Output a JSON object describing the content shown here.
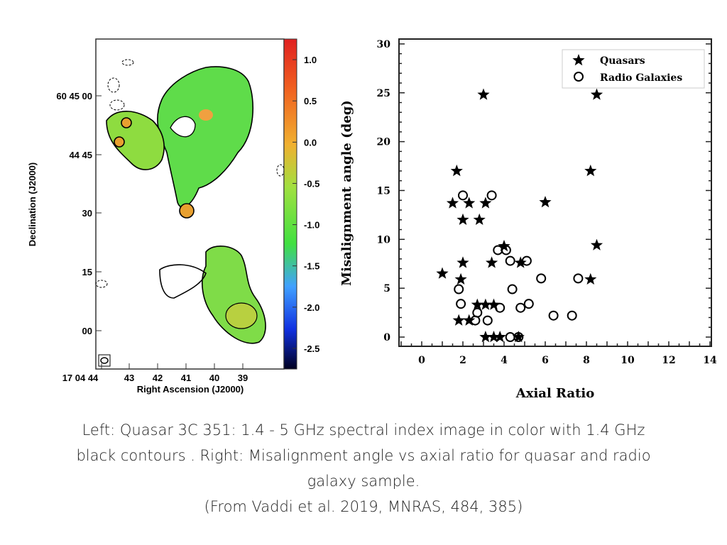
{
  "left_panel": {
    "title": "",
    "xlabel": "Right Ascension (J2000)",
    "ylabel": "Declination (J2000)",
    "x_ticks": [
      "17 04 44",
      "43",
      "42",
      "41",
      "40",
      "39"
    ],
    "y_ticks": [
      "60 45 00",
      "44 45",
      "30",
      "15",
      "00"
    ],
    "colorbar_ticks": [
      "1.0",
      "0.5",
      "0.0",
      "-0.5",
      "-1.0",
      "-1.5",
      "-2.0",
      "-2.5"
    ],
    "colorbar_range": [
      -2.75,
      1.25
    ],
    "colormap": [
      "#000020",
      "#1030e0",
      "#40a0ff",
      "#40e040",
      "#a0e040",
      "#f0b030",
      "#f06020",
      "#e02020"
    ]
  },
  "chart_data": {
    "type": "scatter",
    "title": "",
    "xlabel": "Axial Ratio",
    "ylabel": "Misalignment angle (deg)",
    "xlim": [
      -1,
      14
    ],
    "ylim": [
      -1,
      30
    ],
    "x_ticks": [
      0,
      2,
      4,
      6,
      8,
      10,
      12,
      14
    ],
    "y_ticks": [
      0,
      5,
      10,
      15,
      20,
      25,
      30
    ],
    "grid": false,
    "legend_placement": "top-right",
    "series": [
      {
        "name": "Quasars",
        "marker": "star",
        "points": [
          [
            3.0,
            24.8
          ],
          [
            8.5,
            24.8
          ],
          [
            1.7,
            17.0
          ],
          [
            8.2,
            17.0
          ],
          [
            1.5,
            13.7
          ],
          [
            2.3,
            13.7
          ],
          [
            3.1,
            13.7
          ],
          [
            6.0,
            13.8
          ],
          [
            2.0,
            12.0
          ],
          [
            2.8,
            12.0
          ],
          [
            4.0,
            9.3
          ],
          [
            8.5,
            9.4
          ],
          [
            2.0,
            7.6
          ],
          [
            3.4,
            7.6
          ],
          [
            4.8,
            7.6
          ],
          [
            1.0,
            6.5
          ],
          [
            1.9,
            5.9
          ],
          [
            8.2,
            5.9
          ],
          [
            2.7,
            3.3
          ],
          [
            3.1,
            3.3
          ],
          [
            3.5,
            3.3
          ],
          [
            1.8,
            1.7
          ],
          [
            2.3,
            1.7
          ],
          [
            3.1,
            0.0
          ],
          [
            3.5,
            0.0
          ],
          [
            3.8,
            0.0
          ],
          [
            4.7,
            0.0
          ]
        ]
      },
      {
        "name": "Radio Galaxies",
        "marker": "open-circle",
        "points": [
          [
            2.0,
            14.5
          ],
          [
            3.4,
            14.5
          ],
          [
            3.7,
            8.9
          ],
          [
            4.1,
            8.9
          ],
          [
            4.3,
            7.8
          ],
          [
            5.1,
            7.8
          ],
          [
            5.8,
            6.0
          ],
          [
            7.6,
            6.0
          ],
          [
            1.8,
            4.9
          ],
          [
            4.4,
            4.9
          ],
          [
            1.9,
            3.4
          ],
          [
            3.8,
            3.0
          ],
          [
            4.8,
            3.0
          ],
          [
            5.2,
            3.4
          ],
          [
            2.7,
            2.5
          ],
          [
            2.6,
            1.7
          ],
          [
            3.2,
            1.7
          ],
          [
            6.4,
            2.2
          ],
          [
            7.3,
            2.2
          ],
          [
            4.3,
            0.0
          ],
          [
            4.7,
            0.0
          ]
        ]
      }
    ]
  },
  "caption": {
    "line1": "Left: Quasar 3C 351: 1.4 - 5 GHz spectral index image in color with 1.4 GHz",
    "line2": "black contours . Right: Misalignment angle vs axial ratio for quasar and radio",
    "line3": "galaxy sample.",
    "line4": "(From Vaddi et al. 2019, MNRAS, 484, 385)"
  }
}
